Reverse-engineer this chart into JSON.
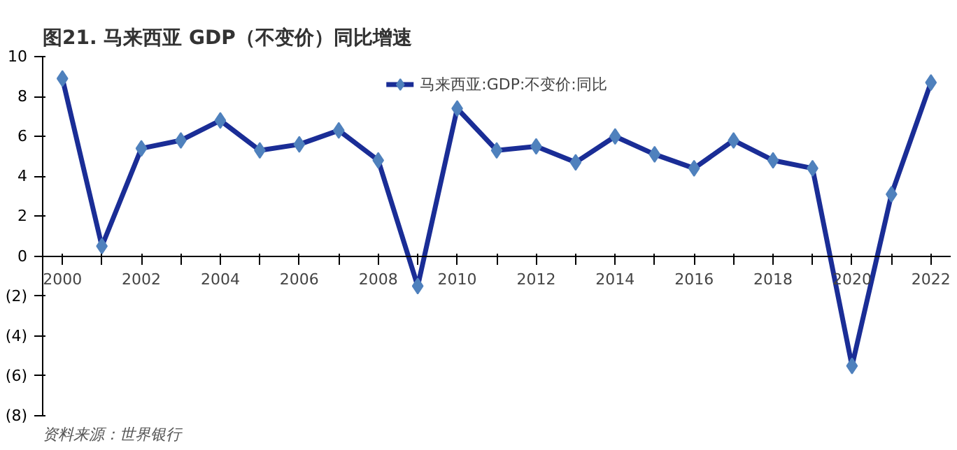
{
  "chart_data": {
    "type": "line",
    "title": "图21. 马来西亚 GDP（不变价）同比增速",
    "categories": [
      "2000",
      null,
      "2002",
      null,
      "2004",
      null,
      "2006",
      null,
      "2008",
      null,
      "2010",
      null,
      "2012",
      null,
      "2014",
      null,
      "2016",
      null,
      "2018",
      null,
      "2020",
      null,
      "2022"
    ],
    "series": [
      {
        "name": "马来西亚:GDP:不变价:同比",
        "color": "#1a2d96",
        "values": [
          8.9,
          0.5,
          5.4,
          5.8,
          6.8,
          5.3,
          5.6,
          6.3,
          4.8,
          -1.5,
          7.4,
          5.3,
          5.5,
          4.7,
          6.0,
          5.1,
          4.4,
          5.8,
          4.8,
          4.4,
          -5.5,
          3.1,
          8.7
        ]
      }
    ],
    "ylim": [
      -8,
      10
    ],
    "yticks": [
      {
        "value": -8,
        "label": "(8)"
      },
      {
        "value": -6,
        "label": "(6)"
      },
      {
        "value": -4,
        "label": "(4)"
      },
      {
        "value": -2,
        "label": "(2)"
      },
      0,
      2,
      4,
      6,
      8,
      10
    ],
    "marker": "diamond",
    "legend": "top",
    "grid": false,
    "annotations": [
      "资料来源：世界银行"
    ]
  }
}
